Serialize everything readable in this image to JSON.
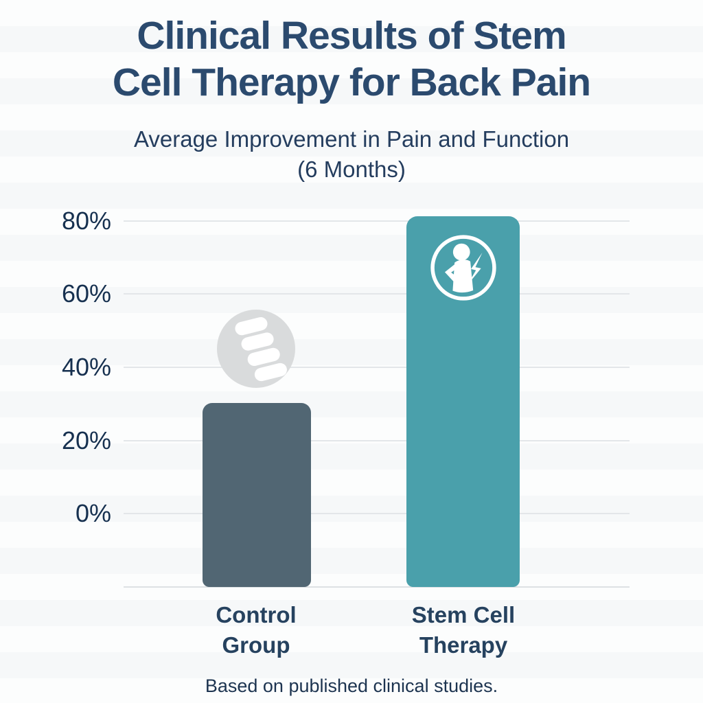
{
  "header": {
    "title_line1": "Clinical Results of Stem",
    "title_line2": "Cell Therapy for Back Pain",
    "subtitle_line1": "Average Improvement in Pain and Function",
    "subtitle_line2": "(6 Months)"
  },
  "chart_data": {
    "type": "bar",
    "title": "Clinical Results of Stem Cell Therapy for Back Pain",
    "subtitle": "Average Improvement in Pain and Function (6 Months)",
    "categories": [
      "Control Group",
      "Stem Cell Therapy"
    ],
    "categories_lines": [
      [
        "Control",
        "Group"
      ],
      [
        "Stem Cell",
        "Therapy"
      ]
    ],
    "values": [
      30,
      81
    ],
    "unit": "%",
    "ytick_labels": [
      "80%",
      "60%",
      "40%",
      "20%",
      "0%"
    ],
    "ytick_values": [
      80,
      60,
      40,
      20,
      0
    ],
    "ylim": [
      0,
      85
    ],
    "grid": true,
    "legend": "none",
    "bar_colors": [
      "#516673",
      "#4aa0ab"
    ],
    "bar_icons": [
      "spine-icon",
      "back-pain-person-icon"
    ]
  },
  "footer": {
    "note": "Based on published clinical studies."
  },
  "colors": {
    "background": "#f9fafb",
    "title_text": "#2b4a6e",
    "axis_text": "#16304f",
    "category_text": "#26425f",
    "gridline": "#e3e6e9",
    "slate_bar": "#516673",
    "teal_bar": "#4aa0ab",
    "icon_circle_bg": "#d9dbdc",
    "icon_glyph": "#ffffff"
  }
}
